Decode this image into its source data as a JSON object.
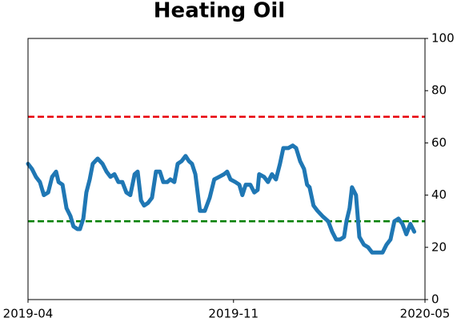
{
  "chart_data": {
    "type": "line",
    "title": "Heating Oil",
    "x": [
      0,
      0.13,
      0.26,
      0.39,
      0.52,
      0.66,
      0.79,
      0.92,
      1.0,
      1.13,
      1.26,
      1.39,
      1.49,
      1.62,
      1.7,
      1.81,
      1.91,
      2.02,
      2.12,
      2.28,
      2.44,
      2.57,
      2.7,
      2.83,
      2.96,
      3.09,
      3.22,
      3.35,
      3.49,
      3.59,
      3.7,
      3.8,
      3.93,
      4.06,
      4.19,
      4.32,
      4.43,
      4.56,
      4.66,
      4.79,
      4.9,
      5.03,
      5.16,
      5.27,
      5.37,
      5.48,
      5.63,
      5.79,
      5.95,
      6.1,
      6.26,
      6.42,
      6.52,
      6.63,
      6.79,
      6.92,
      7.02,
      7.13,
      7.28,
      7.41,
      7.52,
      7.57,
      7.73,
      7.86,
      7.99,
      8.12,
      8.25,
      8.36,
      8.52,
      8.67,
      8.78,
      8.91,
      9.04,
      9.14,
      9.22,
      9.35,
      9.48,
      9.64,
      9.83,
      9.96,
      10.09,
      10.22,
      10.35,
      10.43,
      10.53,
      10.61,
      10.74,
      10.85,
      11.0,
      11.14,
      11.27,
      11.45,
      11.61,
      11.74,
      11.87,
      12.0,
      12.13,
      12.26,
      12.39,
      12.52,
      12.65
    ],
    "series": [
      {
        "color": "#1f77b4",
        "values": [
          52,
          50,
          47,
          45,
          40,
          41,
          47,
          49,
          45,
          44,
          35,
          32,
          28,
          27,
          27,
          31,
          41,
          46,
          52,
          54,
          52,
          49,
          47,
          48,
          45,
          45,
          41,
          40,
          48,
          49,
          38,
          36,
          37,
          39,
          49,
          49,
          45,
          45,
          46,
          45,
          52,
          53,
          55,
          53,
          52,
          48,
          34,
          34,
          39,
          46,
          47,
          48,
          49,
          46,
          45,
          44,
          40,
          44,
          44,
          41,
          42,
          48,
          47,
          45,
          48,
          46,
          52,
          58,
          58,
          59,
          58,
          53,
          50,
          44,
          43,
          36,
          34,
          32,
          30,
          26,
          23,
          23,
          24,
          30,
          35,
          43,
          40,
          24,
          21,
          20,
          18,
          18,
          18,
          21,
          23,
          30,
          31,
          29,
          25,
          29,
          26
        ]
      }
    ],
    "xlim": [
      0,
      13
    ],
    "xticks": [
      {
        "value": 0,
        "label": "2019-04"
      },
      {
        "value": 6.73,
        "label": "2019-11"
      },
      {
        "value": 13,
        "label": "2020-05"
      }
    ],
    "ylim": [
      0,
      100
    ],
    "yticks": [
      0,
      20,
      40,
      60,
      80,
      100
    ],
    "hlines": [
      {
        "value": 70,
        "color": "#e8000b"
      },
      {
        "value": 30,
        "color": "#008000"
      }
    ]
  }
}
